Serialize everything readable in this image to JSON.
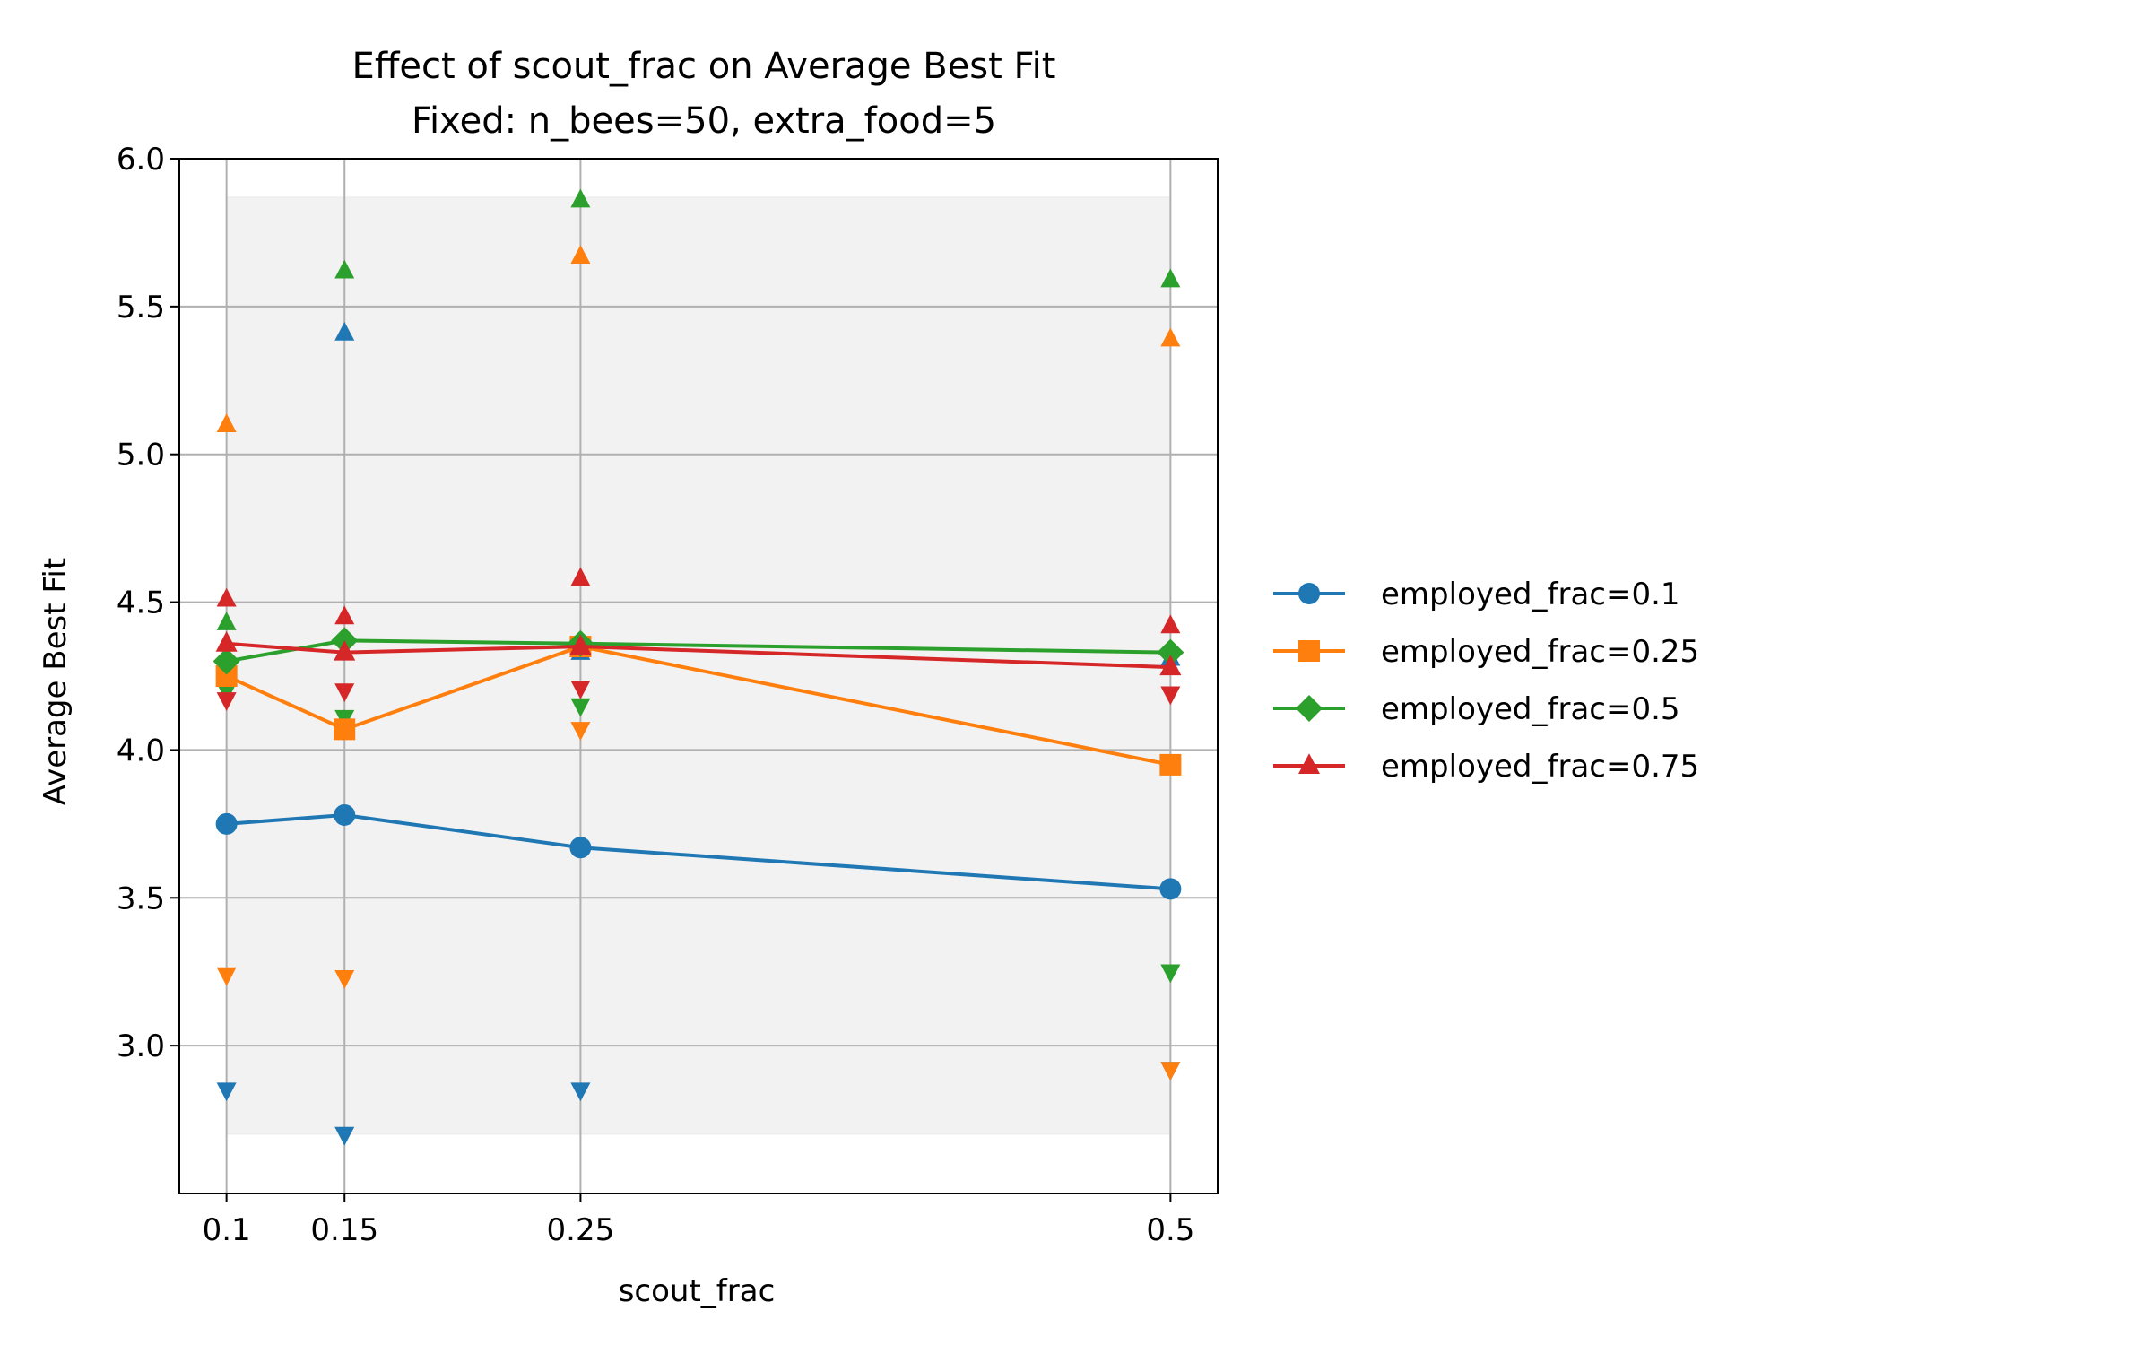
{
  "chart_data": {
    "type": "line",
    "title": "Effect of scout_frac on Average Best Fit",
    "subtitle": "Fixed: n_bees=50, extra_food=5",
    "xlabel": "scout_frac",
    "ylabel": "Average Best Fit",
    "x": [
      0.1,
      0.15,
      0.25,
      0.5
    ],
    "x_tick_labels": [
      "0.1",
      "0.15",
      "0.25",
      "0.5"
    ],
    "xlim": [
      0.08,
      0.52
    ],
    "ylim": [
      2.5,
      6.0
    ],
    "y_ticks": [
      3.0,
      3.5,
      4.0,
      4.5,
      5.0,
      5.5,
      6.0
    ],
    "y_tick_labels": [
      "3.0",
      "3.5",
      "4.0",
      "4.5",
      "5.0",
      "5.5",
      "6.0"
    ],
    "grid": true,
    "shaded_band": {
      "x_range": [
        0.1,
        0.5
      ],
      "y_range": [
        2.7,
        5.87
      ]
    },
    "legend_position": "right-outside",
    "series": [
      {
        "name": "employed_frac=0.1",
        "color": "#1f77b4",
        "marker": "circle",
        "values": [
          3.75,
          3.78,
          3.67,
          3.53
        ],
        "upper": [
          4.27,
          5.41,
          4.33,
          4.31
        ],
        "lower": [
          2.85,
          2.7,
          2.85,
          2.92
        ]
      },
      {
        "name": "employed_frac=0.25",
        "color": "#ff7f0e",
        "marker": "square",
        "values": [
          4.25,
          4.07,
          4.35,
          3.95
        ],
        "upper": [
          5.1,
          4.38,
          5.67,
          5.39
        ],
        "lower": [
          3.24,
          3.23,
          4.07,
          2.92
        ]
      },
      {
        "name": "employed_frac=0.5",
        "color": "#2ca02c",
        "marker": "diamond",
        "values": [
          4.3,
          4.37,
          4.36,
          4.33
        ],
        "upper": [
          4.43,
          5.62,
          5.86,
          5.59
        ],
        "lower": [
          4.2,
          4.11,
          4.15,
          3.25
        ]
      },
      {
        "name": "employed_frac=0.75",
        "color": "#d62728",
        "marker": "triangle",
        "values": [
          4.36,
          4.33,
          4.35,
          4.28
        ],
        "upper": [
          4.51,
          4.45,
          4.58,
          4.42
        ],
        "lower": [
          4.17,
          4.2,
          4.21,
          4.19
        ]
      }
    ]
  }
}
